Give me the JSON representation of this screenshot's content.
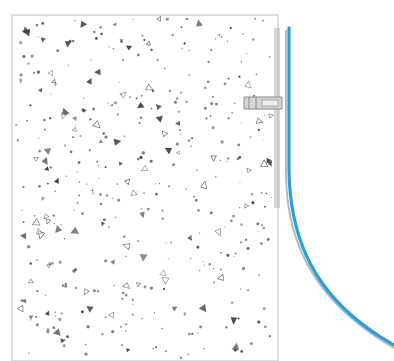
{
  "diagram": {
    "elements": [
      {
        "id": "concrete-block",
        "kind": "speckled-rectangle"
      },
      {
        "id": "anchor-plate",
        "kind": "bracket"
      },
      {
        "id": "membrane-curve",
        "kind": "curved-line"
      }
    ]
  },
  "colors": {
    "background": "#ffffff",
    "block_fill": "#ffffff",
    "block_border": "#c8c8c8",
    "speckle": "#6a6a6a",
    "speckle_dark": "#3c3c3c",
    "plate": "#bdbdbd",
    "plate_outline": "#8a8a8a",
    "curve": "#2a9fd8",
    "curve_shadow": "#8a8a8a"
  }
}
